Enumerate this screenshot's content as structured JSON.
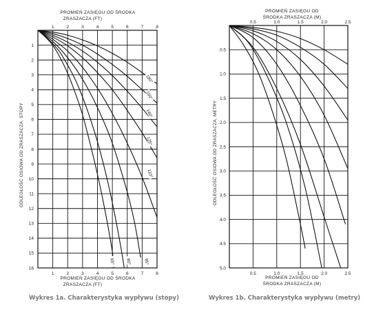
{
  "chart_data": [
    {
      "type": "line",
      "caption": "Wykres 1a. Charakterystyka wypływu (stopy)",
      "top_axis_label": [
        "PROMIEŃ ZASIĘGU OD ŚRODKA",
        "ZRASZACZA (FT)"
      ],
      "bottom_axis_label": [
        "PROMIEŃ ZASIĘGU OD ŚRODKA",
        "ZRASZACZA (FT)"
      ],
      "ylabel": "ODLEGŁOŚĆ OSIOWA OD ZRASZACZA, STOPY",
      "xlim": [
        0,
        8
      ],
      "ylim": [
        0,
        16
      ],
      "x_ticks": [
        1,
        2,
        3,
        4,
        5,
        6,
        7,
        8
      ],
      "y_ticks": [
        1,
        2,
        3,
        4,
        5,
        6,
        7,
        8,
        9,
        10,
        11,
        12,
        13,
        14,
        15,
        16
      ],
      "y_inverted": true,
      "grid": true,
      "series": [
        {
          "name": "65°",
          "x": [
            0,
            0.5,
            1,
            1.5,
            2,
            2.5,
            3,
            3.5,
            4,
            4.5,
            5,
            5.1
          ],
          "y": [
            0,
            0.45,
            1,
            1.85,
            2.9,
            4.2,
            5.7,
            7.6,
            9.7,
            12.1,
            14.9,
            16
          ]
        },
        {
          "name": "80°",
          "x": [
            0,
            0.5,
            1,
            1.5,
            2,
            2.5,
            3,
            3.5,
            4,
            4.5,
            5,
            5.5,
            5.8
          ],
          "y": [
            0,
            0.4,
            0.9,
            1.5,
            2.35,
            3.3,
            4.5,
            5.9,
            7.5,
            9.4,
            11.6,
            14.2,
            16
          ]
        },
        {
          "name": "95°",
          "x": [
            0,
            1,
            2,
            3,
            4,
            5,
            6,
            6.5,
            6.9
          ],
          "y": [
            0,
            0.75,
            1.85,
            3.3,
            5.2,
            7.6,
            10.9,
            13,
            15.3
          ]
        },
        {
          "name": "110°",
          "x": [
            0,
            1,
            2,
            3,
            4,
            5,
            6,
            7,
            8
          ],
          "y": [
            0,
            0.6,
            1.4,
            2.5,
            3.9,
            5.6,
            7.6,
            9.9,
            12.6
          ]
        },
        {
          "name": "125°",
          "x": [
            0,
            1,
            2,
            3,
            4,
            5,
            6,
            7,
            8
          ],
          "y": [
            0,
            0.45,
            1.05,
            1.85,
            2.85,
            4.0,
            5.4,
            6.9,
            8.6
          ]
        },
        {
          "name": "140°",
          "x": [
            0,
            1,
            2,
            3,
            4,
            5,
            6,
            7,
            8
          ],
          "y": [
            0,
            0.33,
            0.8,
            1.4,
            2.15,
            3.05,
            4.1,
            5.25,
            6.5
          ]
        },
        {
          "name": "160°",
          "x": [
            0,
            1,
            2,
            3,
            4,
            5,
            6,
            7,
            8
          ],
          "y": [
            0,
            0.22,
            0.55,
            1.0,
            1.6,
            2.3,
            3.1,
            4.0,
            4.9
          ]
        },
        {
          "name": "180°",
          "x": [
            0,
            1,
            2,
            3,
            4,
            5,
            6,
            7,
            8
          ],
          "y": [
            0,
            0.12,
            0.33,
            0.65,
            1.05,
            1.55,
            2.15,
            2.85,
            3.6
          ]
        }
      ]
    },
    {
      "type": "line",
      "caption": "Wykres 1b. Charakterystyka wypływu (metry)",
      "top_axis_label": [
        "PROMIEŃ ZASIĘGU OD",
        "ŚRODKA ZRASZACZA (M)"
      ],
      "bottom_axis_label": [
        "PROMIEŃ ZASIĘGU OD",
        "ŚRODKA ZRASZACZA (M)"
      ],
      "ylabel": "ODLEGŁOŚĆ OSIOWA OD ZRASZACZA, METRY",
      "xlim": [
        0,
        2.5
      ],
      "ylim": [
        0,
        5.0
      ],
      "x_ticks": [
        "0.5",
        "1.0",
        "1.5",
        "2.0",
        "2.5"
      ],
      "y_ticks": [
        "0.5",
        "1.0",
        "1.5",
        "2.0",
        "2.5",
        "3.0",
        "3.5",
        "4.0",
        "4.5",
        "5.0"
      ],
      "y_inverted": true,
      "grid": true,
      "series": [
        {
          "x": [
            0,
            0.3,
            0.6,
            0.9,
            1.2,
            1.5,
            1.6
          ],
          "y": [
            0,
            0.4,
            0.95,
            1.75,
            2.75,
            4.1,
            4.6
          ]
        },
        {
          "x": [
            0,
            0.4,
            0.8,
            1.2,
            1.6,
            1.95
          ],
          "y": [
            0,
            0.35,
            1.05,
            2.0,
            3.35,
            5.0
          ]
        },
        {
          "x": [
            0,
            0.5,
            1.0,
            1.5,
            2.0,
            2.35
          ],
          "y": [
            0,
            0.45,
            1.3,
            2.45,
            3.95,
            5.0
          ]
        },
        {
          "x": [
            0,
            0.5,
            1.0,
            1.5,
            2.0,
            2.45
          ],
          "y": [
            0,
            0.25,
            0.8,
            1.65,
            2.75,
            4.1
          ]
        },
        {
          "x": [
            0,
            0.5,
            1.0,
            1.5,
            2.0,
            2.5
          ],
          "y": [
            0,
            0.17,
            0.5,
            1.05,
            1.85,
            2.95
          ]
        },
        {
          "x": [
            0,
            0.5,
            1.0,
            1.5,
            2.0,
            2.5
          ],
          "y": [
            0,
            0.11,
            0.33,
            0.7,
            1.25,
            1.95
          ]
        },
        {
          "x": [
            0,
            0.5,
            1.0,
            1.5,
            2.0,
            2.5
          ],
          "y": [
            0,
            0.07,
            0.2,
            0.45,
            0.8,
            1.3
          ]
        },
        {
          "x": [
            0,
            0.5,
            1.0,
            1.5,
            2.0,
            2.5
          ],
          "y": [
            0,
            0.04,
            0.12,
            0.27,
            0.5,
            0.8
          ]
        }
      ]
    }
  ]
}
